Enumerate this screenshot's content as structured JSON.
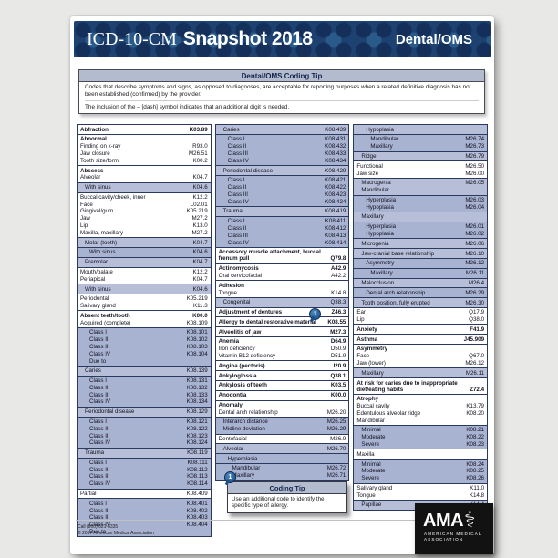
{
  "colors": {
    "navy_band": "#1d4170",
    "band_dot_dark": "#14305a",
    "band_dot_light": "#2a5a8a",
    "highlight_light": "#b7bfd8",
    "highlight_dark": "#a8b2d1",
    "tip_header_bg": "#b3bbce",
    "block_border": "#2a3a5e",
    "card_bg": "#ffffff",
    "page_bg": "#e8e8e6",
    "marker_blue": "#1d4e86"
  },
  "header": {
    "brand_serif": "ICD-10-CM",
    "brand_bold": "Snapshot 2018",
    "edition": "Dental/OMS"
  },
  "tip_top": {
    "title": "Dental/OMS Coding Tip",
    "para1": "Codes that describe symptoms and signs, as opposed to diagnoses, are acceptable for reporting purposes when a related definitive diagnosis has not been established (confirmed) by the provider.",
    "para2": "The inclusion of the – [dash] symbol indicates that an additional digit is needed."
  },
  "tip_bottom": {
    "marker": "1",
    "title": "Coding Tip",
    "body": "Use an additional code to identify the specific type of allergy."
  },
  "footer": {
    "phone": "Call (800) 621-8335",
    "copyright": "© 2017 American Medical Association"
  },
  "logo": {
    "acronym": "AMA",
    "staff_icon": "⚕",
    "line1": "AMERICAN MEDICAL",
    "line2": "ASSOCIATION"
  },
  "columns": [
    [
      {
        "bg": "w",
        "rows": [
          {
            "l": "Abfraction",
            "c": "K03.89",
            "b": 1
          }
        ]
      },
      {
        "bg": "w",
        "rows": [
          {
            "l": "Abnormal",
            "b": 1
          },
          {
            "l": "Finding on x-ray",
            "c": "R93.0"
          },
          {
            "l": "Jaw closure",
            "c": "M26.51"
          },
          {
            "l": "Tooth size/form",
            "c": "K00.2"
          }
        ]
      },
      {
        "bg": "w",
        "rows": [
          {
            "l": "Abscess",
            "b": 1
          },
          {
            "l": "Alveolar",
            "c": "K04.7"
          }
        ]
      },
      {
        "bg": "h1",
        "rows": [
          {
            "l": "With sinus",
            "c": "K04.6",
            "ind": 1
          }
        ]
      },
      {
        "bg": "w",
        "rows": [
          {
            "l": "Buccal cavity/cheek, inner",
            "c": "K12.2"
          },
          {
            "l": "Face",
            "c": "L02.01"
          },
          {
            "l": "Gingival/gum",
            "c": "K05.219"
          },
          {
            "l": "Jaw",
            "c": "M27.2"
          },
          {
            "l": "Lip",
            "c": "K13.0"
          },
          {
            "l": "Maxilla, maxillary",
            "c": "M27.2"
          }
        ]
      },
      {
        "bg": "h1",
        "rows": [
          {
            "l": "Molar (tooth)",
            "c": "K04.7",
            "ind": 1
          }
        ]
      },
      {
        "bg": "h2",
        "rows": [
          {
            "l": "With sinus",
            "c": "K04.6",
            "ind": 2
          }
        ]
      },
      {
        "bg": "h1",
        "rows": [
          {
            "l": "Premolar",
            "c": "K04.7",
            "ind": 1
          }
        ]
      },
      {
        "bg": "w",
        "rows": [
          {
            "l": "Mouth/palate",
            "c": "K12.2"
          },
          {
            "l": "Periapical",
            "c": "K04.7"
          }
        ]
      },
      {
        "bg": "h1",
        "rows": [
          {
            "l": "With sinus",
            "c": "K04.6",
            "ind": 1
          }
        ]
      },
      {
        "bg": "w",
        "rows": [
          {
            "l": "Periodontal",
            "c": "K05.219"
          },
          {
            "l": "Salivary gland",
            "c": "K11.3"
          }
        ]
      },
      {
        "bg": "w",
        "rows": [
          {
            "l": "Absent teeth/tooth",
            "c": "K00.0",
            "b": 1
          },
          {
            "l": "Acquired (complete)",
            "c": "K08.109"
          }
        ]
      },
      {
        "bg": "h2",
        "rows": [
          {
            "l": "Class I",
            "c": "K08.101",
            "ind": 2
          },
          {
            "l": "Class II",
            "c": "K08.102",
            "ind": 2
          },
          {
            "l": "Class III",
            "c": "K08.103",
            "ind": 2
          },
          {
            "l": "Class IV",
            "c": "K08.104",
            "ind": 2
          },
          {
            "l": "Due to",
            "ind": 2
          }
        ]
      },
      {
        "bg": "h1",
        "rows": [
          {
            "l": "Caries",
            "c": "K08.139",
            "ind": 1
          }
        ]
      },
      {
        "bg": "h2",
        "rows": [
          {
            "l": "Class I",
            "c": "K08.131",
            "ind": 2
          },
          {
            "l": "Class II",
            "c": "K08.132",
            "ind": 2
          },
          {
            "l": "Class III",
            "c": "K08.133",
            "ind": 2
          },
          {
            "l": "Class IV",
            "c": "K08.134",
            "ind": 2
          }
        ]
      },
      {
        "bg": "h1",
        "rows": [
          {
            "l": "Periodontal disease",
            "c": "K08.129",
            "ind": 1
          }
        ]
      },
      {
        "bg": "h2",
        "rows": [
          {
            "l": "Class I",
            "c": "K08.121",
            "ind": 2
          },
          {
            "l": "Class II",
            "c": "K08.122",
            "ind": 2
          },
          {
            "l": "Class III",
            "c": "K08.123",
            "ind": 2
          },
          {
            "l": "Class IV",
            "c": "K08.124",
            "ind": 2
          }
        ]
      },
      {
        "bg": "h1",
        "rows": [
          {
            "l": "Trauma",
            "c": "K08.119",
            "ind": 1
          }
        ]
      },
      {
        "bg": "h2",
        "rows": [
          {
            "l": "Class I",
            "c": "K08.111",
            "ind": 2
          },
          {
            "l": "Class II",
            "c": "K08.112",
            "ind": 2
          },
          {
            "l": "Class III",
            "c": "K08.113",
            "ind": 2
          },
          {
            "l": "Class IV",
            "c": "K08.114",
            "ind": 2
          }
        ]
      },
      {
        "bg": "w",
        "rows": [
          {
            "l": "Partial",
            "c": "K08.409"
          }
        ]
      },
      {
        "bg": "h2",
        "rows": [
          {
            "l": "Class I",
            "c": "K08.401",
            "ind": 2
          },
          {
            "l": "Class II",
            "c": "K08.402",
            "ind": 2
          },
          {
            "l": "Class III",
            "c": "K08.403",
            "ind": 2
          },
          {
            "l": "Class IV",
            "c": "K08.404",
            "ind": 2
          },
          {
            "l": "Due to",
            "ind": 2
          }
        ]
      }
    ],
    [
      {
        "bg": "h1",
        "rows": [
          {
            "l": "Caries",
            "c": "K08.439",
            "ind": 1
          }
        ]
      },
      {
        "bg": "h2",
        "rows": [
          {
            "l": "Class I",
            "c": "K08.431",
            "ind": 2
          },
          {
            "l": "Class II",
            "c": "K08.432",
            "ind": 2
          },
          {
            "l": "Class III",
            "c": "K08.433",
            "ind": 2
          },
          {
            "l": "Class IV",
            "c": "K08.434",
            "ind": 2
          }
        ]
      },
      {
        "bg": "h1",
        "rows": [
          {
            "l": "Periodontal disease",
            "c": "K08.429",
            "ind": 1
          }
        ]
      },
      {
        "bg": "h2",
        "rows": [
          {
            "l": "Class I",
            "c": "K08.421",
            "ind": 2
          },
          {
            "l": "Class II",
            "c": "K08.422",
            "ind": 2
          },
          {
            "l": "Class III",
            "c": "K08.423",
            "ind": 2
          },
          {
            "l": "Class IV",
            "c": "K08.424",
            "ind": 2
          }
        ]
      },
      {
        "bg": "h1",
        "rows": [
          {
            "l": "Trauma",
            "c": "K08.419",
            "ind": 1
          }
        ]
      },
      {
        "bg": "h2",
        "rows": [
          {
            "l": "Class I",
            "c": "K08.411",
            "ind": 2
          },
          {
            "l": "Class II",
            "c": "K08.412",
            "ind": 2
          },
          {
            "l": "Class III",
            "c": "K08.413",
            "ind": 2
          },
          {
            "l": "Class IV",
            "c": "K08.414",
            "ind": 2
          }
        ]
      },
      {
        "bg": "w",
        "rows": [
          {
            "l": "Accessory muscle attachment, buccal frenum pull",
            "c": "Q79.8",
            "b": 1
          }
        ]
      },
      {
        "bg": "w",
        "rows": [
          {
            "l": "Actinomycosis",
            "c": "A42.9",
            "b": 1
          },
          {
            "l": "Oral cervicofacial",
            "c": "A42.2"
          }
        ]
      },
      {
        "bg": "w",
        "rows": [
          {
            "l": "Adhesion",
            "b": 1
          },
          {
            "l": "Tongue",
            "c": "K14.8"
          }
        ]
      },
      {
        "bg": "h1",
        "rows": [
          {
            "l": "Congenital",
            "c": "Q38.3",
            "ind": 1
          }
        ]
      },
      {
        "bg": "w",
        "rows": [
          {
            "l": "Adjustment of dentures",
            "c": "Z46.3",
            "b": 1,
            "marker": "1"
          }
        ]
      },
      {
        "bg": "w",
        "rows": [
          {
            "l": "Allergy to dental restorative material",
            "c": "K08.55",
            "b": 1
          }
        ]
      },
      {
        "bg": "w",
        "rows": [
          {
            "l": "Alveolitis of jaw",
            "c": "M27.3",
            "b": 1
          }
        ]
      },
      {
        "bg": "w",
        "rows": [
          {
            "l": "Anemia",
            "c": "D64.9",
            "b": 1
          },
          {
            "l": "Iron deficiency",
            "c": "D50.9"
          },
          {
            "l": "Vitamin B12 deficiency",
            "c": "D51.9"
          }
        ]
      },
      {
        "bg": "w",
        "rows": [
          {
            "l": "Angina (pectoris)",
            "c": "I20.9",
            "b": 1
          }
        ]
      },
      {
        "bg": "w",
        "rows": [
          {
            "l": "Ankyloglossia",
            "c": "Q38.1",
            "b": 1
          }
        ]
      },
      {
        "bg": "w",
        "rows": [
          {
            "l": "Ankylosis of teeth",
            "c": "K03.5",
            "b": 1
          }
        ]
      },
      {
        "bg": "w",
        "rows": [
          {
            "l": "Anodontia",
            "c": "K00.0",
            "b": 1
          }
        ]
      },
      {
        "bg": "w",
        "rows": [
          {
            "l": "Anomaly",
            "b": 1
          },
          {
            "l": "Dental arch relationship",
            "c": "M26.20"
          }
        ]
      },
      {
        "bg": "h2",
        "rows": [
          {
            "l": "Interarch distance",
            "c": "M26.25",
            "ind": 1
          },
          {
            "l": "Midline deviation",
            "c": "M26.29",
            "ind": 1
          }
        ]
      },
      {
        "bg": "w",
        "rows": [
          {
            "l": "Dentofacial",
            "c": "M26.9"
          }
        ]
      },
      {
        "bg": "h1",
        "rows": [
          {
            "l": "Alveolar",
            "c": "M26.70",
            "ind": 1
          }
        ]
      },
      {
        "bg": "h2",
        "rows": [
          {
            "l": "Hyperplasia",
            "ind": 2
          }
        ]
      },
      {
        "bg": "h2",
        "rows": [
          {
            "l": "Mandibular",
            "c": "M26.72",
            "ind": 3
          },
          {
            "l": "Maxillary",
            "c": "M26.71",
            "ind": 3
          }
        ]
      }
    ],
    [
      {
        "bg": "h1",
        "rows": [
          {
            "l": "Hypoplasia",
            "ind": 2
          }
        ]
      },
      {
        "bg": "h2",
        "rows": [
          {
            "l": "Mandibular",
            "c": "M26.74",
            "ind": 3
          },
          {
            "l": "Maxillary",
            "c": "M26.73",
            "ind": 3
          }
        ]
      },
      {
        "bg": "h1",
        "rows": [
          {
            "l": "Ridge",
            "c": "M26.79",
            "ind": 1
          }
        ]
      },
      {
        "bg": "w",
        "rows": [
          {
            "l": "Functional",
            "c": "M26.50"
          },
          {
            "l": "Jaw size",
            "c": "M26.00"
          }
        ]
      },
      {
        "bg": "h1",
        "rows": [
          {
            "l": "Macrogenia",
            "c": "M26.05",
            "ind": 1
          },
          {
            "l": "Mandibular",
            "ind": 1
          }
        ]
      },
      {
        "bg": "h2",
        "rows": [
          {
            "l": "Hyperplasia",
            "c": "M26.03",
            "ind": 2
          },
          {
            "l": "Hypoplasia",
            "c": "M26.04",
            "ind": 2
          }
        ]
      },
      {
        "bg": "h1",
        "rows": [
          {
            "l": "Maxillary",
            "ind": 1
          }
        ]
      },
      {
        "bg": "h2",
        "rows": [
          {
            "l": "Hyperplasia",
            "c": "M26.01",
            "ind": 2
          },
          {
            "l": "Hypoplasia",
            "c": "M26.02",
            "ind": 2
          }
        ]
      },
      {
        "bg": "h1",
        "rows": [
          {
            "l": "Microgenia",
            "c": "M26.06",
            "ind": 1
          }
        ]
      },
      {
        "bg": "h1",
        "rows": [
          {
            "l": "Jaw-cranial base relationship",
            "c": "M26.10",
            "ind": 1
          }
        ]
      },
      {
        "bg": "h2",
        "rows": [
          {
            "l": "Asymmetry",
            "c": "M26.12",
            "ind": 2
          }
        ]
      },
      {
        "bg": "h2",
        "rows": [
          {
            "l": "Maxillary",
            "c": "M26.11",
            "ind": 3
          }
        ]
      },
      {
        "bg": "h1",
        "rows": [
          {
            "l": "Malocclusion",
            "c": "M26.4",
            "ind": 1
          }
        ]
      },
      {
        "bg": "h2",
        "rows": [
          {
            "l": "Dental arch relationship",
            "c": "M26.29",
            "ind": 2
          }
        ]
      },
      {
        "bg": "h1",
        "rows": [
          {
            "l": "Tooth position, fully erupted",
            "c": "M26.30",
            "ind": 1
          }
        ]
      },
      {
        "bg": "w",
        "rows": [
          {
            "l": "Ear",
            "c": "Q17.9"
          },
          {
            "l": "Lip",
            "c": "Q38.0"
          }
        ]
      },
      {
        "bg": "w",
        "rows": [
          {
            "l": "Anxiety",
            "c": "F41.9",
            "b": 1
          }
        ]
      },
      {
        "bg": "w",
        "rows": [
          {
            "l": "Asthma",
            "c": "J45.909",
            "b": 1
          }
        ]
      },
      {
        "bg": "w",
        "rows": [
          {
            "l": "Asymmetry",
            "b": 1
          },
          {
            "l": "Face",
            "c": "Q67.0"
          },
          {
            "l": "Jaw (lower)",
            "c": "M26.12"
          }
        ]
      },
      {
        "bg": "h1",
        "rows": [
          {
            "l": "Maxillary",
            "c": "M26.11",
            "ind": 1
          }
        ]
      },
      {
        "bg": "w",
        "rows": [
          {
            "l": "At risk for caries due to inappropriate diet/eating habits",
            "c": "Z72.4",
            "b": 1
          }
        ]
      },
      {
        "bg": "w",
        "rows": [
          {
            "l": "Atrophy",
            "b": 1
          },
          {
            "l": "Buccal cavity",
            "c": "K13.79"
          },
          {
            "l": "Edentulous alveolar ridge",
            "c": "K08.20"
          },
          {
            "l": "Mandibular"
          }
        ]
      },
      {
        "bg": "h2",
        "rows": [
          {
            "l": "Minimal",
            "c": "K08.21",
            "ind": 1
          },
          {
            "l": "Moderate",
            "c": "K08.22",
            "ind": 1
          },
          {
            "l": "Severe",
            "c": "K08.23",
            "ind": 1
          }
        ]
      },
      {
        "bg": "w",
        "rows": [
          {
            "l": "Maxilla"
          }
        ]
      },
      {
        "bg": "h2",
        "rows": [
          {
            "l": "Minimal",
            "c": "K08.24",
            "ind": 1
          },
          {
            "l": "Moderate",
            "c": "K08.25",
            "ind": 1
          },
          {
            "l": "Severe",
            "c": "K08.26",
            "ind": 1
          }
        ]
      },
      {
        "bg": "w",
        "rows": [
          {
            "l": "Salivary gland",
            "c": "K11.0"
          },
          {
            "l": "Tongue",
            "c": "K14.8"
          }
        ]
      },
      {
        "bg": "h1",
        "rows": [
          {
            "l": "Papillae",
            "c": "K14.4",
            "ind": 1
          }
        ]
      }
    ]
  ]
}
